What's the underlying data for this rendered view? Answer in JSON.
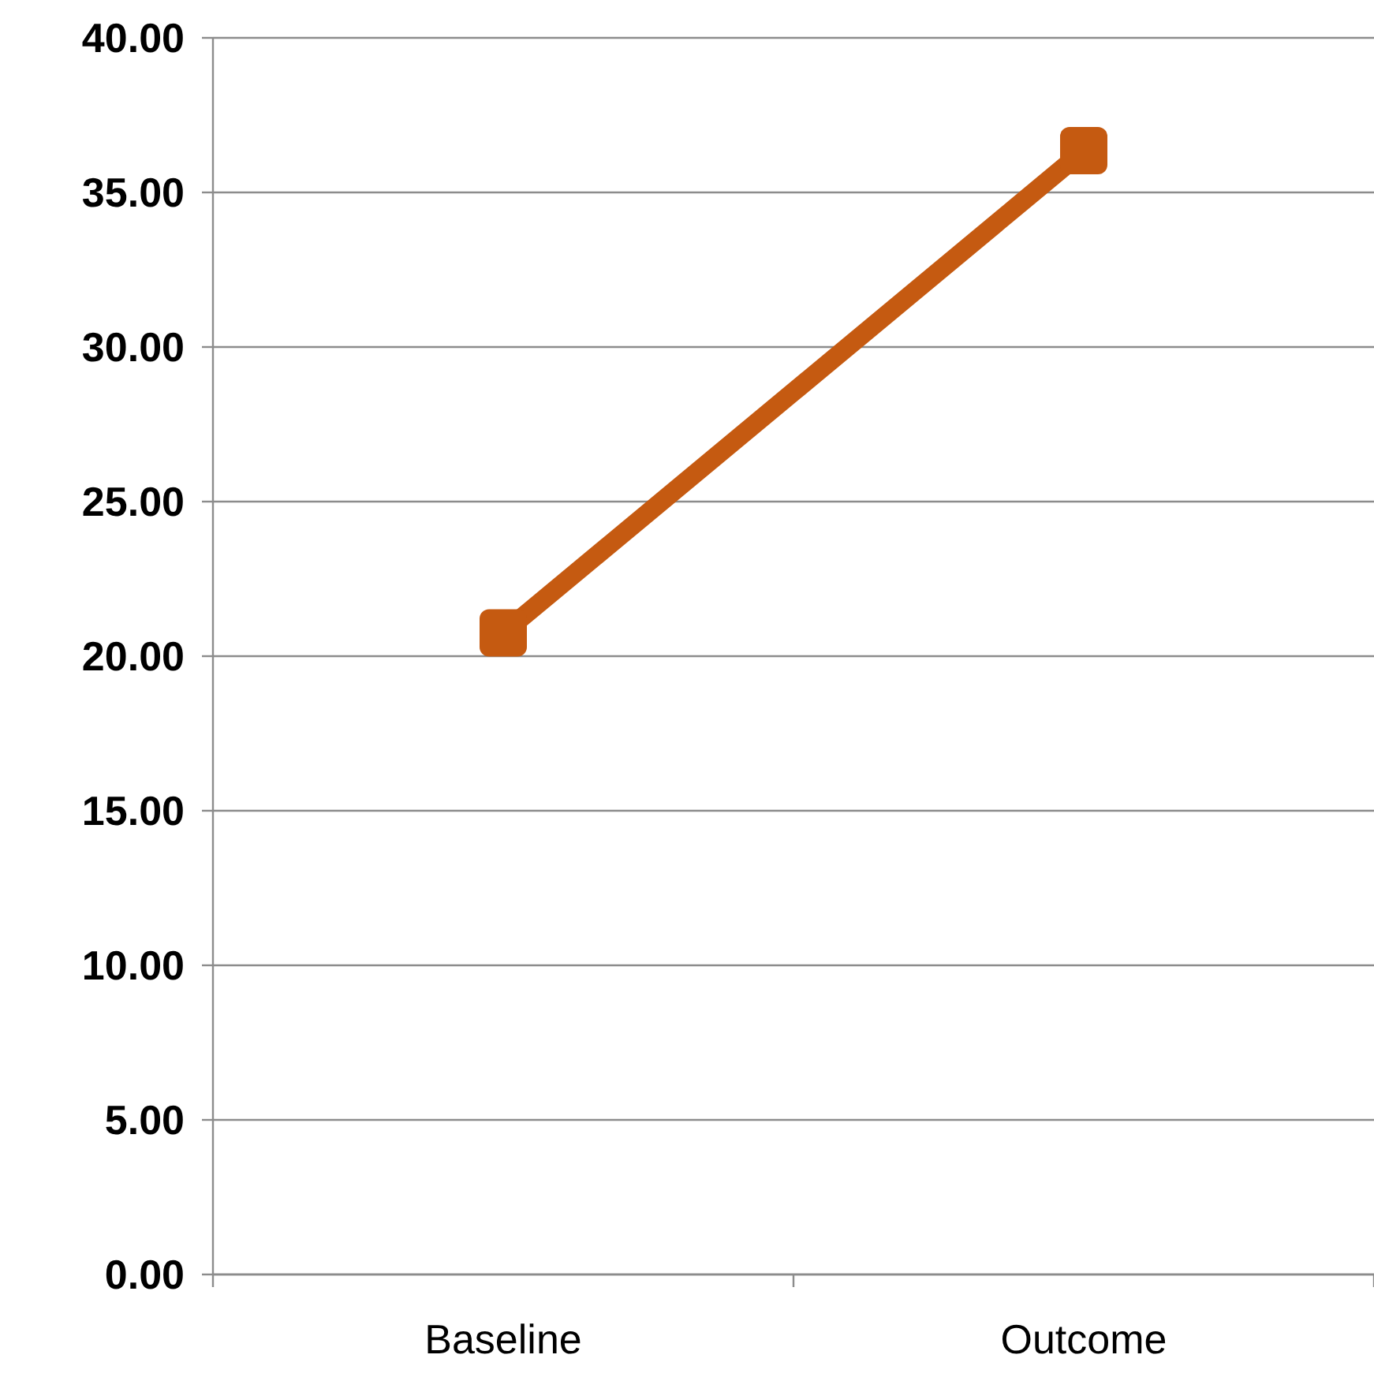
{
  "chart_data": {
    "type": "line",
    "categories": [
      "Baseline",
      "Outcome"
    ],
    "series": [
      {
        "color": "#c55a11",
        "values": [
          20.75,
          36.35
        ]
      }
    ],
    "ylim": [
      0,
      40
    ],
    "yticks": [
      {
        "value": 0,
        "label": "0.00"
      },
      {
        "value": 5,
        "label": "5.00"
      },
      {
        "value": 10,
        "label": "10.00"
      },
      {
        "value": 15,
        "label": "15.00"
      },
      {
        "value": 20,
        "label": "20.00"
      },
      {
        "value": 25,
        "label": "25.00"
      },
      {
        "value": 30,
        "label": "30.00"
      },
      {
        "value": 35,
        "label": "35.00"
      },
      {
        "value": 40,
        "label": "40.00"
      }
    ],
    "grid": "y",
    "marker": "square",
    "line_style": "solid"
  }
}
